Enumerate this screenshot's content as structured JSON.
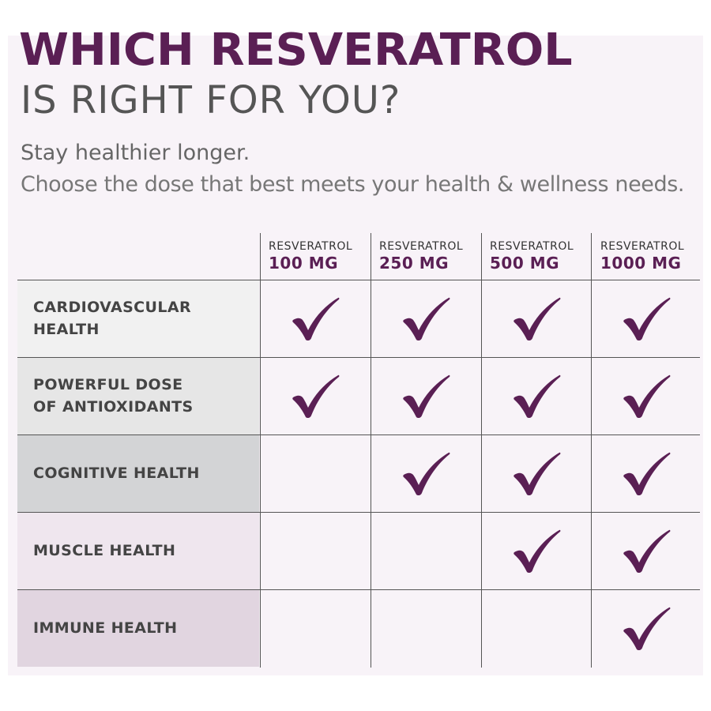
{
  "header": {
    "title_line1": "WHICH RESVERATROL",
    "title_line2": "IS RIGHT FOR YOU?",
    "subtitle_line1": "Stay healthier longer.",
    "subtitle_line2": "Choose the dose that best meets your health & wellness needs."
  },
  "colors": {
    "brand_purple": "#5a1f54",
    "text_gray": "#444444",
    "panel_bg": "#f8f3f8"
  },
  "table": {
    "columns": [
      {
        "brand": "RESVERATROL",
        "dose": "100 MG"
      },
      {
        "brand": "RESVERATROL",
        "dose": "250 MG"
      },
      {
        "brand": "RESVERATROL",
        "dose": "500 MG"
      },
      {
        "brand": "RESVERATROL",
        "dose": "1000 MG"
      }
    ],
    "rows": [
      {
        "line1": "CARDIOVASCULAR",
        "line2": "HEALTH",
        "checks": [
          true,
          true,
          true,
          true
        ]
      },
      {
        "line1": "POWERFUL DOSE",
        "line2": "OF ANTIOXIDANTS",
        "checks": [
          true,
          true,
          true,
          true
        ]
      },
      {
        "line1": "COGNITIVE HEALTH",
        "line2": "",
        "checks": [
          false,
          true,
          true,
          true
        ]
      },
      {
        "line1": "MUSCLE HEALTH",
        "line2": "",
        "checks": [
          false,
          false,
          true,
          true
        ]
      },
      {
        "line1": "IMMUNE HEALTH",
        "line2": "",
        "checks": [
          false,
          false,
          false,
          true
        ]
      }
    ],
    "check_icon": "checkmark-icon"
  }
}
